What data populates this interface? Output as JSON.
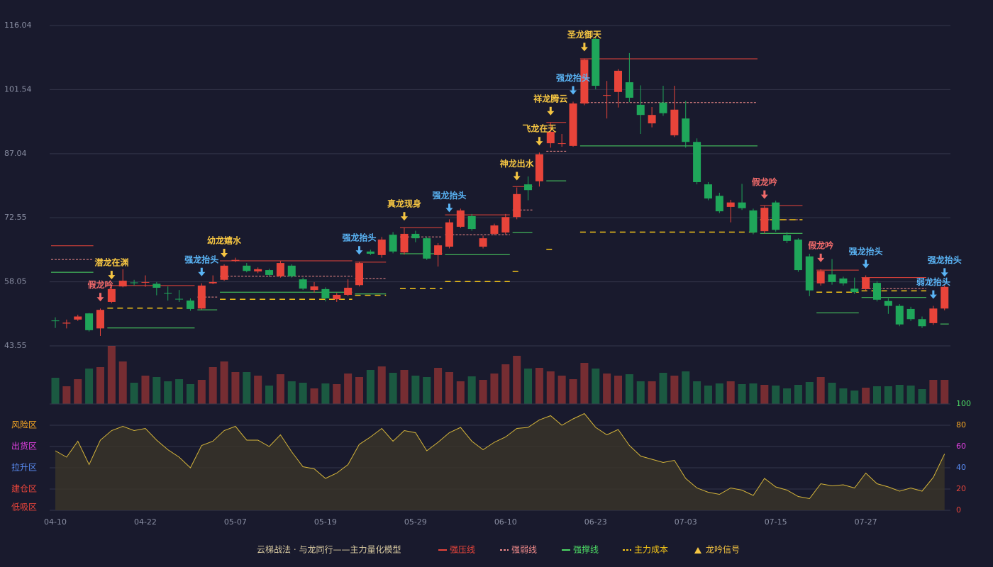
{
  "chart_data": [
    {
      "type": "candlestick",
      "legend_title": "云梯战法 · 与龙同行——主力量化模型",
      "categories": [
        "04-10",
        null,
        null,
        null,
        null,
        null,
        null,
        null,
        "04-22",
        null,
        null,
        null,
        null,
        null,
        null,
        null,
        "05-07",
        null,
        null,
        null,
        null,
        null,
        null,
        null,
        "05-19",
        null,
        null,
        null,
        null,
        null,
        null,
        null,
        "05-29",
        null,
        null,
        null,
        null,
        null,
        null,
        null,
        "06-10",
        null,
        null,
        null,
        null,
        null,
        null,
        null,
        "06-23",
        null,
        null,
        null,
        null,
        null,
        null,
        null,
        "07-03",
        null,
        null,
        null,
        null,
        null,
        null,
        null,
        "07-15",
        null,
        null,
        null,
        null,
        null,
        null,
        null,
        "07-27",
        null,
        null,
        null,
        null,
        null,
        null,
        null
      ],
      "open": [
        49.3,
        48.6,
        49.5,
        50.9,
        47.5,
        53.5,
        57.0,
        57.9,
        57.9,
        57.6,
        55.5,
        54.2,
        53.8,
        52.0,
        57.7,
        58.5,
        62.9,
        61.7,
        60.4,
        60.7,
        59.3,
        61.7,
        58.6,
        56.2,
        56.4,
        54.1,
        55.1,
        57.3,
        64.9,
        64.1,
        68.7,
        64.7,
        68.9,
        67.9,
        64.1,
        66.0,
        70.5,
        72.9,
        66.0,
        68.9,
        69.2,
        72.7,
        80.1,
        80.8,
        89.4,
        89.3,
        88.8,
        98.4,
        113.0,
        100.2,
        101.0,
        103.2,
        98.1,
        93.9,
        98.6,
        91.2,
        95.0,
        89.7,
        80.1,
        77.5,
        75.0,
        76.0,
        74.2,
        69.5,
        76.0,
        68.6,
        67.6,
        63.8,
        57.7,
        59.7,
        58.8,
        56.5,
        56.4,
        57.8,
        53.7,
        52.6,
        51.9,
        49.6,
        48.7,
        52.0
      ],
      "high": [
        50.0,
        49.5,
        50.6,
        51.0,
        52.0,
        57.0,
        60.9,
        58.5,
        59.5,
        58.0,
        57.0,
        56.2,
        54.3,
        57.7,
        59.5,
        62.0,
        63.5,
        62.3,
        61.3,
        61.0,
        62.8,
        62.0,
        59.0,
        58.0,
        56.8,
        55.5,
        58.6,
        62.6,
        65.3,
        68.2,
        69.3,
        70.3,
        69.6,
        68.3,
        66.8,
        72.2,
        74.6,
        73.4,
        68.5,
        71.2,
        73.4,
        79.4,
        81.9,
        87.3,
        94.1,
        91.5,
        98.8,
        108.6,
        113.5,
        103.5,
        106.2,
        109.8,
        102.5,
        97.6,
        102.4,
        102.4,
        99.0,
        90.5,
        80.6,
        78.2,
        76.6,
        80.2,
        74.6,
        75.2,
        76.4,
        69.3,
        67.9,
        64.4,
        60.9,
        63.2,
        59.2,
        59.0,
        59.5,
        58.2,
        54.3,
        53.0,
        52.4,
        50.2,
        52.6,
        57.6
      ],
      "low": [
        47.6,
        47.5,
        49.2,
        46.8,
        45.8,
        53.2,
        56.8,
        57.2,
        56.9,
        55.0,
        53.8,
        53.5,
        51.5,
        51.8,
        57.5,
        58.3,
        62.5,
        60.2,
        60.0,
        59.2,
        59.0,
        59.0,
        56.2,
        55.6,
        53.6,
        53.5,
        54.8,
        57.0,
        64.1,
        63.5,
        64.5,
        64.2,
        67.0,
        63.0,
        61.5,
        65.6,
        70.2,
        69.6,
        65.6,
        68.6,
        68.8,
        72.2,
        76.5,
        79.6,
        88.4,
        88.6,
        88.6,
        98.0,
        101.6,
        95.0,
        97.5,
        98.7,
        91.5,
        93.0,
        95.6,
        90.8,
        88.4,
        80.1,
        76.5,
        73.6,
        71.5,
        74.3,
        68.8,
        69.0,
        69.4,
        66.8,
        60.3,
        54.8,
        57.2,
        57.4,
        57.2,
        55.3,
        56.0,
        53.6,
        50.8,
        48.0,
        49.2,
        47.6,
        48.3,
        51.6
      ],
      "close": [
        49.2,
        48.8,
        50.2,
        47.1,
        51.7,
        56.4,
        58.3,
        57.8,
        58.0,
        56.7,
        55.4,
        54.1,
        51.9,
        57.2,
        58.0,
        61.7,
        63.0,
        60.5,
        60.9,
        59.6,
        62.3,
        59.3,
        56.5,
        57.0,
        54.3,
        55.1,
        56.7,
        62.3,
        64.4,
        67.6,
        64.9,
        68.9,
        67.9,
        63.3,
        66.3,
        71.5,
        74.2,
        70.0,
        67.9,
        70.8,
        72.7,
        77.9,
        78.8,
        86.9,
        92.0,
        89.4,
        98.4,
        108.3,
        102.4,
        100.3,
        105.8,
        99.7,
        95.8,
        95.8,
        96.2,
        97.0,
        89.7,
        80.6,
        76.9,
        74.0,
        76.0,
        74.7,
        69.2,
        74.8,
        69.8,
        67.3,
        60.7,
        56.1,
        60.5,
        58.0,
        57.7,
        55.7,
        59.0,
        54.0,
        52.6,
        48.4,
        49.6,
        48.0,
        52.0,
        56.9
      ],
      "up_color": "#e8443a",
      "down_color": "#1fa65a",
      "ylim": [
        43.55,
        116.04
      ],
      "yticks": [
        43.55,
        58.05,
        72.55,
        87.04,
        101.54,
        116.04
      ],
      "grid": true,
      "levels": [
        {
          "name": "强压线",
          "color": "#e8443a",
          "style": "solid",
          "segments": [
            {
              "start": 0,
              "end": 3,
              "value": 66.2
            },
            {
              "start": 5,
              "end": 12,
              "value": 57.2
            },
            {
              "start": 15,
              "end": 26,
              "value": 62.8
            },
            {
              "start": 27,
              "end": 29,
              "value": 62.5
            },
            {
              "start": 31,
              "end": 34,
              "value": 70.3
            },
            {
              "start": 35,
              "end": 40,
              "value": 73.2
            },
            {
              "start": 41,
              "end": 42,
              "value": 79.6
            },
            {
              "start": 44,
              "end": 45,
              "value": 94.1
            },
            {
              "start": 47,
              "end": 62,
              "value": 108.5
            },
            {
              "start": 63,
              "end": 66,
              "value": 75.3
            },
            {
              "start": 68,
              "end": 71,
              "value": 60.7
            },
            {
              "start": 72,
              "end": 77,
              "value": 59.0
            }
          ]
        },
        {
          "name": "强弱线",
          "color": "#f08a8a",
          "style": "dashed",
          "segments": [
            {
              "start": 0,
              "end": 3,
              "value": 63.1
            },
            {
              "start": 13,
              "end": 14,
              "value": 54.6
            },
            {
              "start": 15,
              "end": 26,
              "value": 59.3
            },
            {
              "start": 27,
              "end": 29,
              "value": 58.8
            },
            {
              "start": 31,
              "end": 34,
              "value": 68.2
            },
            {
              "start": 35,
              "end": 40,
              "value": 68.7
            },
            {
              "start": 41,
              "end": 42,
              "value": 74.3
            },
            {
              "start": 44,
              "end": 45,
              "value": 87.6
            },
            {
              "start": 47,
              "end": 62,
              "value": 98.6
            },
            {
              "start": 63,
              "end": 66,
              "value": 72.1
            },
            {
              "start": 72,
              "end": 77,
              "value": 56.5
            }
          ]
        },
        {
          "name": "强撑线",
          "color": "#4cd964",
          "style": "solid",
          "segments": [
            {
              "start": 0,
              "end": 3,
              "value": 60.2
            },
            {
              "start": 5,
              "end": 12,
              "value": 47.6
            },
            {
              "start": 13,
              "end": 14,
              "value": 51.7
            },
            {
              "start": 15,
              "end": 26,
              "value": 55.7
            },
            {
              "start": 27,
              "end": 29,
              "value": 55.3
            },
            {
              "start": 31,
              "end": 34,
              "value": 64.4
            },
            {
              "start": 35,
              "end": 40,
              "value": 64.2
            },
            {
              "start": 41,
              "end": 42,
              "value": 69.2
            },
            {
              "start": 44,
              "end": 45,
              "value": 80.9
            },
            {
              "start": 47,
              "end": 62,
              "value": 88.8
            },
            {
              "start": 63,
              "end": 66,
              "value": 69.0
            },
            {
              "start": 68,
              "end": 71,
              "value": 51.0
            },
            {
              "start": 72,
              "end": 77,
              "value": 54.5
            },
            {
              "start": 79,
              "end": 79,
              "value": 48.5
            }
          ]
        },
        {
          "name": "主力成本",
          "color": "#f5c518",
          "style": "longdash",
          "segments": [
            {
              "start": 5,
              "end": 12,
              "value": 52.1
            },
            {
              "start": 15,
              "end": 26,
              "value": 54.1
            },
            {
              "start": 27,
              "end": 29,
              "value": 55.0
            },
            {
              "start": 31,
              "end": 34,
              "value": 56.5
            },
            {
              "start": 35,
              "end": 40,
              "value": 58.1
            },
            {
              "start": 41,
              "end": 41,
              "value": 60.4
            },
            {
              "start": 44,
              "end": 44,
              "value": 65.4
            },
            {
              "start": 47,
              "end": 62,
              "value": 69.3
            },
            {
              "start": 63,
              "end": 66,
              "value": 72.1
            },
            {
              "start": 68,
              "end": 71,
              "value": 55.7
            },
            {
              "start": 72,
              "end": 77,
              "value": 56.0
            }
          ]
        }
      ],
      "signal_name": "龙吟信号",
      "signal_color": "#f5c542",
      "signals": [
        {
          "index": 4,
          "label": "假龙吟",
          "color": "#f06a6a"
        },
        {
          "index": 5,
          "label": "潜龙在渊",
          "color": "#f5c542"
        },
        {
          "index": 13,
          "label": "强龙抬头",
          "color": "#5ab4f5"
        },
        {
          "index": 15,
          "label": "幼龙嬉水",
          "color": "#f5c542"
        },
        {
          "index": 27,
          "label": "强龙抬头",
          "color": "#5ab4f5"
        },
        {
          "index": 31,
          "label": "真龙现身",
          "color": "#f5c542"
        },
        {
          "index": 35,
          "label": "强龙抬头",
          "color": "#5ab4f5"
        },
        {
          "index": 41,
          "label": "神龙出水",
          "color": "#f5c542"
        },
        {
          "index": 43,
          "label": "飞龙在天",
          "color": "#f5c542"
        },
        {
          "index": 44,
          "label": "祥龙腾云",
          "color": "#f5c542"
        },
        {
          "index": 46,
          "label": "强龙抬头",
          "color": "#5ab4f5"
        },
        {
          "index": 47,
          "label": "圣龙御天",
          "color": "#f5c542"
        },
        {
          "index": 63,
          "label": "假龙吟",
          "color": "#f06a6a"
        },
        {
          "index": 68,
          "label": "假龙吟",
          "color": "#f06a6a"
        },
        {
          "index": 72,
          "label": "强龙抬头",
          "color": "#5ab4f5"
        },
        {
          "index": 78,
          "label": "弱龙抬头",
          "color": "#5ab4f5"
        },
        {
          "index": 79,
          "label": "强龙抬头",
          "color": "#5ab4f5"
        }
      ]
    },
    {
      "type": "bar",
      "values": [
        37,
        25,
        35,
        50,
        52,
        82,
        60,
        30,
        40,
        38,
        32,
        35,
        28,
        34,
        52,
        60,
        45,
        45,
        40,
        26,
        42,
        32,
        30,
        22,
        29,
        28,
        43,
        38,
        48,
        53,
        44,
        48,
        40,
        38,
        51,
        45,
        32,
        39,
        34,
        43,
        56,
        68,
        50,
        51,
        46,
        40,
        35,
        58,
        50,
        43,
        40,
        42,
        32,
        32,
        44,
        40,
        46,
        32,
        26,
        29,
        32,
        28,
        29,
        27,
        26,
        22,
        27,
        31,
        38,
        30,
        22,
        19,
        23,
        25,
        25,
        27,
        26,
        21,
        34,
        34
      ]
    },
    {
      "type": "line",
      "color": "#d4b43a",
      "fill": "#3a3428",
      "values": [
        56,
        50,
        65,
        43,
        66,
        75,
        79,
        75,
        77,
        66,
        57,
        50,
        40,
        61,
        65,
        75,
        79,
        66,
        66,
        60,
        71,
        55,
        41,
        39,
        30,
        35,
        43,
        62,
        69,
        77,
        65,
        75,
        73,
        56,
        64,
        73,
        78,
        65,
        57,
        64,
        69,
        77,
        78,
        85,
        89,
        80,
        86,
        91,
        78,
        71,
        76,
        61,
        51,
        48,
        45,
        47,
        30,
        21,
        17,
        15,
        21,
        19,
        14,
        30,
        22,
        19,
        13,
        11,
        25,
        23,
        24,
        21,
        35,
        25,
        22,
        18,
        21,
        18,
        31,
        53
      ],
      "ylim": [
        0,
        100
      ],
      "yticks": [
        0,
        20,
        40,
        60,
        80,
        100
      ],
      "ytick_colors": [
        "#e8443a",
        "#e8443a",
        "#5a8df5",
        "#e040e0",
        "#f5a623",
        "#4cd964"
      ],
      "zones": [
        {
          "value": 80,
          "label": "风险区",
          "color": "#f5a623"
        },
        {
          "value": 60,
          "label": "出货区",
          "color": "#e040e0"
        },
        {
          "value": 40,
          "label": "拉升区",
          "color": "#5a8df5"
        },
        {
          "value": 20,
          "label": "建仓区",
          "color": "#e8443a"
        },
        {
          "value": 0,
          "label": "低吸区",
          "color": "#e8443a"
        }
      ]
    }
  ]
}
